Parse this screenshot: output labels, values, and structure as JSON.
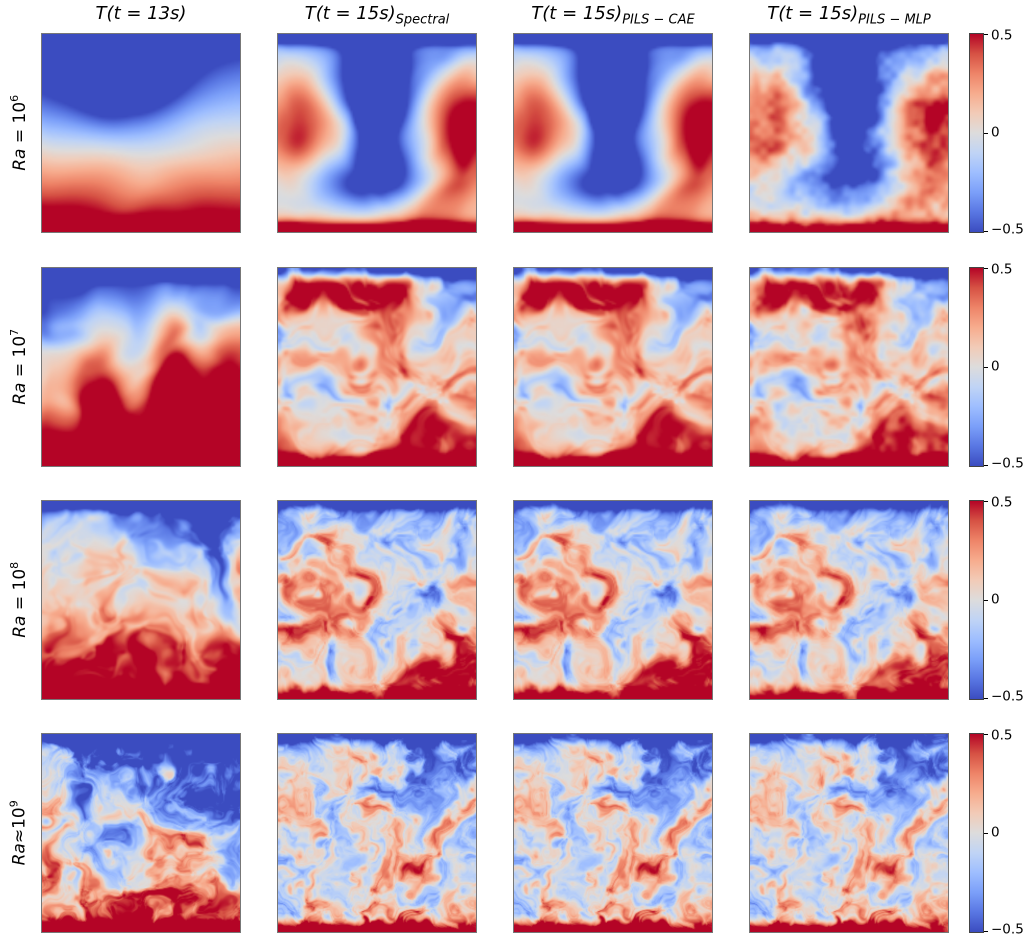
{
  "chart_data": {
    "type": "heatmap",
    "title": "",
    "description": "Grid of Rayleigh-Benard convection temperature fields: initial state T(t=13s) and predicted T(t=15s) from Spectral, PILS-CAE and PILS-MLP solvers, for four Rayleigh numbers (1e6, 1e7, 1e8, ~1e9). Shared symmetric color scale.",
    "value_range": [
      -0.5,
      0.5
    ],
    "grid": {
      "n_rows": 4,
      "n_cols": 4,
      "colorbar_per_row": true
    },
    "colormap": {
      "name": "coolwarm",
      "anchors": [
        {
          "v": -0.5,
          "c": "#3b4cc0"
        },
        {
          "v": -0.4,
          "c": "#5977e3"
        },
        {
          "v": -0.3,
          "c": "#7b9ff9"
        },
        {
          "v": -0.2,
          "c": "#9ebeff"
        },
        {
          "v": -0.1,
          "c": "#c0d4f5"
        },
        {
          "v": 0.0,
          "c": "#dddcdc"
        },
        {
          "v": 0.1,
          "c": "#f2cbb7"
        },
        {
          "v": 0.2,
          "c": "#f7ac8e"
        },
        {
          "v": 0.3,
          "c": "#ee8468"
        },
        {
          "v": 0.4,
          "c": "#d65244"
        },
        {
          "v": 0.5,
          "c": "#b40426"
        }
      ]
    },
    "colorbar": {
      "ticks": [
        "0.5",
        "0",
        "−0.5"
      ]
    },
    "columns": [
      {
        "title_main": "T(t = 13s)",
        "title_sub": ""
      },
      {
        "title_main": "T(t = 15s)",
        "title_sub": "Spectral"
      },
      {
        "title_main": "T(t = 15s)",
        "title_sub": "PILS − CAE"
      },
      {
        "title_main": "T(t = 15s)",
        "title_sub": "PILS − MLP"
      }
    ],
    "rows": [
      {
        "label": {
          "name": "Ra",
          "rel": " = ",
          "base": "10",
          "exp": "6"
        },
        "panels": [
          {
            "desc": "smooth stratified field, cold dome dipping from top, hot bottom boundary",
            "gen": {
              "seed": 101,
              "res": 90,
              "freq": 1.0,
              "oct": 3,
              "warp": 0.8,
              "namp": 0.5,
              "samp": 1.15,
              "gain": 1.3,
              "fine": 0,
              "blobs": [
                [
                  -0.5,
                  0.45,
                  0.2,
                  0.32,
                  0.3
                ]
              ]
            }
          },
          {
            "desc": "large mushroom-shaped cold downwelling plume in center, warm upwellings at sides",
            "gen": {
              "seed": 201,
              "res": 96,
              "freq": 1.4,
              "oct": 3,
              "warp": 1.5,
              "namp": 0.7,
              "samp": 0.5,
              "gain": 1.35,
              "fine": 0,
              "blobs": [
                [
                  -0.62,
                  0.5,
                  0.3,
                  0.14,
                  0.42
                ],
                [
                  -0.5,
                  0.5,
                  0.73,
                  0.3,
                  0.17
                ],
                [
                  0.45,
                  0.06,
                  0.45,
                  0.2,
                  0.33
                ],
                [
                  0.5,
                  0.94,
                  0.42,
                  0.2,
                  0.36
                ]
              ]
            }
          },
          {
            "desc": "same plume structure as spectral reference, nearly identical",
            "gen": {
              "seed": 201,
              "res": 96,
              "freq": 1.4,
              "oct": 3,
              "warp": 1.5,
              "namp": 0.7,
              "samp": 0.5,
              "gain": 1.35,
              "fine": 0,
              "blobs": [
                [
                  -0.62,
                  0.5,
                  0.3,
                  0.14,
                  0.42
                ],
                [
                  -0.5,
                  0.5,
                  0.73,
                  0.3,
                  0.17
                ],
                [
                  0.45,
                  0.06,
                  0.45,
                  0.2,
                  0.33
                ],
                [
                  0.5,
                  0.94,
                  0.42,
                  0.2,
                  0.36
                ]
              ]
            }
          },
          {
            "desc": "same plume structure but noisier, washed-out reconstruction",
            "gen": {
              "seed": 201,
              "res": 96,
              "freq": 1.4,
              "oct": 3,
              "warp": 1.5,
              "namp": 0.7,
              "samp": 0.5,
              "gain": 1.15,
              "fine": 0.16,
              "blobs": [
                [
                  -0.62,
                  0.5,
                  0.3,
                  0.14,
                  0.42
                ],
                [
                  -0.5,
                  0.5,
                  0.73,
                  0.3,
                  0.17
                ],
                [
                  0.45,
                  0.06,
                  0.45,
                  0.2,
                  0.33
                ],
                [
                  0.5,
                  0.94,
                  0.42,
                  0.2,
                  0.36
                ]
              ]
            }
          }
        ]
      },
      {
        "label": {
          "name": "Ra",
          "rel": " = ",
          "base": "10",
          "exp": "7"
        },
        "panels": [
          {
            "desc": "cold upper layer with several warm plumes rising from hot bottom",
            "gen": {
              "seed": 102,
              "res": 110,
              "freq": 2.0,
              "oct": 3,
              "warp": 1.2,
              "namp": 0.8,
              "samp": 0.95,
              "gain": 1.3,
              "fine": 0,
              "blobs": [
                [
                  0.5,
                  0.3,
                  0.72,
                  0.11,
                  0.3
                ],
                [
                  0.55,
                  0.66,
                  0.55,
                  0.11,
                  0.4
                ],
                [
                  0.4,
                  0.95,
                  0.68,
                  0.12,
                  0.3
                ]
              ]
            }
          },
          {
            "desc": "interleaved warm filaments and cold lobes, well-mixed interior",
            "gen": {
              "seed": 202,
              "res": 120,
              "freq": 2.6,
              "oct": 4,
              "warp": 2.4,
              "namp": 1.2,
              "samp": 0.35,
              "gain": 1.35,
              "fine": 0,
              "blobs": [
                [
                  0.28,
                  0.5,
                  0.1,
                  0.5,
                  0.1
                ]
              ]
            }
          },
          {
            "desc": "same filament pattern as spectral reference, nearly identical",
            "gen": {
              "seed": 202,
              "res": 120,
              "freq": 2.6,
              "oct": 4,
              "warp": 2.4,
              "namp": 1.2,
              "samp": 0.35,
              "gain": 1.35,
              "fine": 0,
              "blobs": [
                [
                  0.28,
                  0.5,
                  0.1,
                  0.5,
                  0.1
                ]
              ]
            }
          },
          {
            "desc": "same filament pattern with slight graininess",
            "gen": {
              "seed": 202,
              "res": 120,
              "freq": 2.6,
              "oct": 4,
              "warp": 2.4,
              "namp": 1.2,
              "samp": 0.35,
              "gain": 1.2,
              "fine": 0.14,
              "blobs": [
                [
                  0.28,
                  0.5,
                  0.1,
                  0.5,
                  0.1
                ]
              ]
            }
          }
        ]
      },
      {
        "label": {
          "name": "Ra",
          "rel": " = ",
          "base": "10",
          "exp": "8"
        },
        "panels": [
          {
            "desc": "turbulent mushroom plumes, cold top region, hot bottom region",
            "gen": {
              "seed": 103,
              "res": 150,
              "freq": 3.2,
              "oct": 4,
              "warp": 2.0,
              "namp": 1.05,
              "samp": 0.75,
              "gain": 1.3,
              "fine": 0
            }
          },
          {
            "desc": "fine turbulent swirls, warm filaments over pale blue background",
            "gen": {
              "seed": 203,
              "res": 150,
              "freq": 3.7,
              "oct": 5,
              "warp": 2.8,
              "namp": 1.25,
              "samp": 0.3,
              "gain": 1.25,
              "fine": 0
            }
          },
          {
            "desc": "same turbulent swirls as spectral reference, nearly identical",
            "gen": {
              "seed": 203,
              "res": 150,
              "freq": 3.7,
              "oct": 5,
              "warp": 2.8,
              "namp": 1.25,
              "samp": 0.3,
              "gain": 1.25,
              "fine": 0
            }
          },
          {
            "desc": "same turbulent swirls, slightly smoothed with fine noise",
            "gen": {
              "seed": 203,
              "res": 150,
              "freq": 3.7,
              "oct": 5,
              "warp": 2.8,
              "namp": 1.25,
              "samp": 0.3,
              "gain": 1.12,
              "fine": 0.12
            }
          }
        ]
      },
      {
        "label": {
          "name": "Ra",
          "rel": "≈",
          "base": "10",
          "exp": "9"
        },
        "panels": [
          {
            "desc": "highly turbulent fine-scale mixing, cold top half, hot bottom half",
            "gen": {
              "seed": 104,
              "res": 190,
              "freq": 4.6,
              "oct": 5,
              "warp": 3.0,
              "namp": 1.2,
              "samp": 0.8,
              "gain": 1.3,
              "fine": 0
            }
          },
          {
            "desc": "very fine turbulent filaments, fully mixed field",
            "gen": {
              "seed": 204,
              "res": 190,
              "freq": 5.2,
              "oct": 5,
              "warp": 3.2,
              "namp": 1.25,
              "samp": 0.3,
              "gain": 1.2,
              "fine": 0
            }
          },
          {
            "desc": "same fine filaments as spectral reference, nearly identical",
            "gen": {
              "seed": 204,
              "res": 190,
              "freq": 5.2,
              "oct": 5,
              "warp": 3.2,
              "namp": 1.25,
              "samp": 0.3,
              "gain": 1.2,
              "fine": 0
            }
          },
          {
            "desc": "same fine filaments, slightly diffused reconstruction",
            "gen": {
              "seed": 204,
              "res": 190,
              "freq": 5.2,
              "oct": 5,
              "warp": 3.2,
              "namp": 1.25,
              "samp": 0.3,
              "gain": 1.1,
              "fine": 0.12
            }
          }
        ]
      }
    ]
  }
}
